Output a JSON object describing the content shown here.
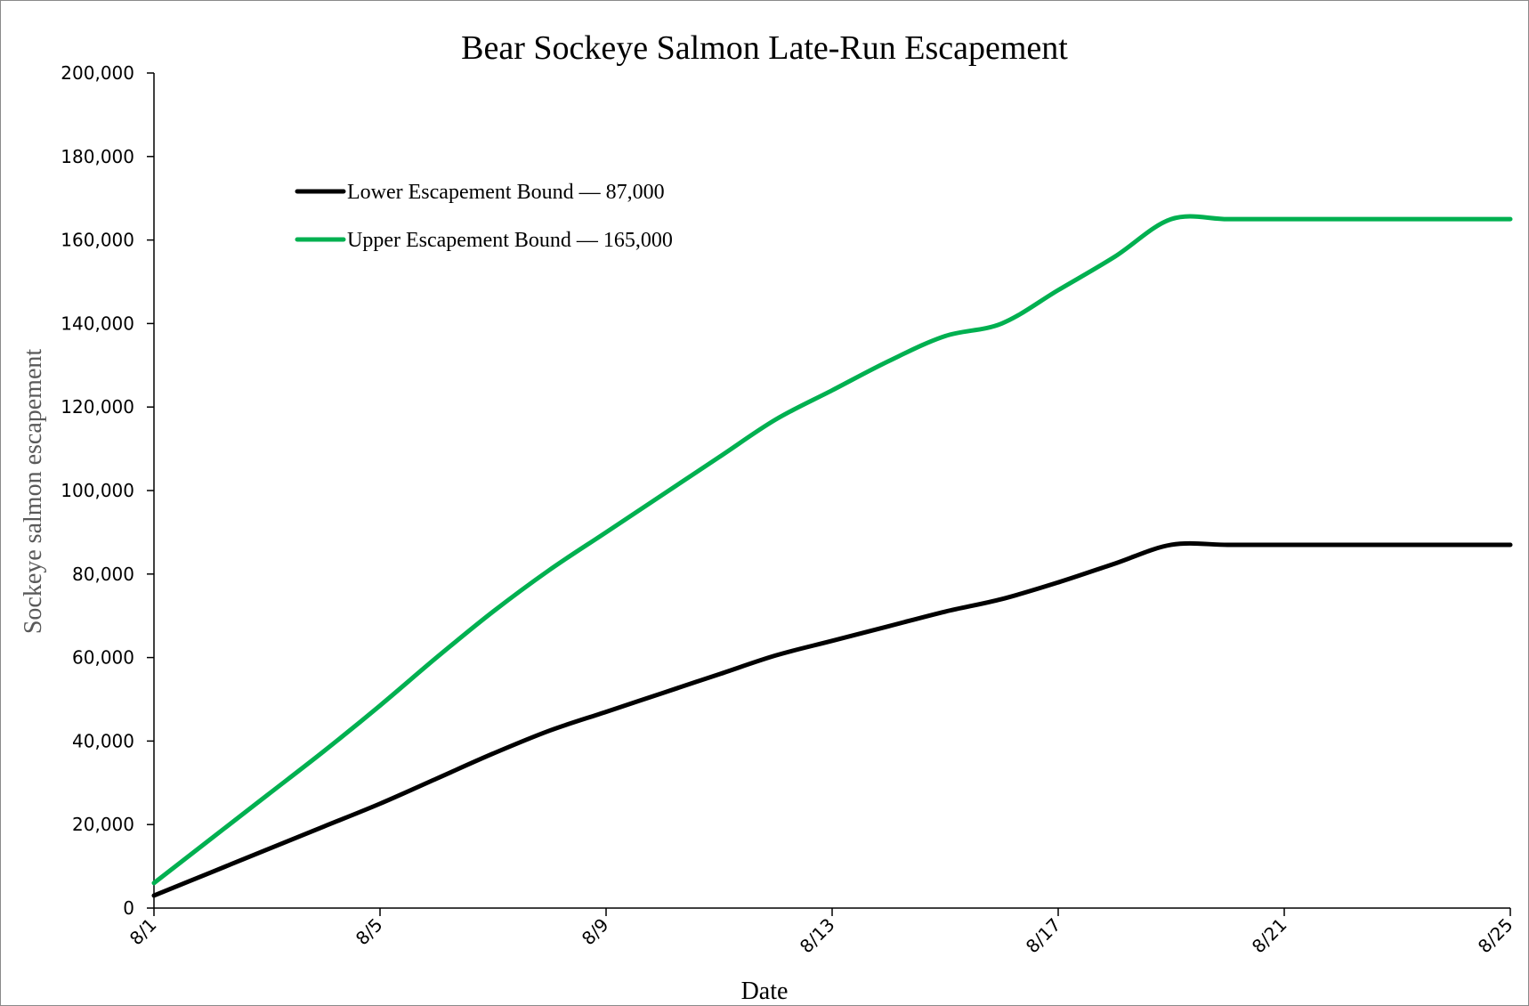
{
  "chart_data": {
    "type": "line",
    "title": "Bear Sockeye Salmon Late-Run Escapement",
    "xlabel": "Date",
    "ylabel": "Sockeye salmon escapement",
    "x": [
      "8/1",
      "8/2",
      "8/3",
      "8/4",
      "8/5",
      "8/6",
      "8/7",
      "8/8",
      "8/9",
      "8/10",
      "8/11",
      "8/12",
      "8/13",
      "8/14",
      "8/15",
      "8/16",
      "8/17",
      "8/18",
      "8/19",
      "8/20",
      "8/21",
      "8/22",
      "8/23",
      "8/24",
      "8/25"
    ],
    "x_tick_labels": [
      "8/1",
      "8/5",
      "8/9",
      "8/13",
      "8/17",
      "8/21",
      "8/25"
    ],
    "y_tick_labels": [
      "0",
      "20,000",
      "40,000",
      "60,000",
      "80,000",
      "100,000",
      "120,000",
      "140,000",
      "160,000",
      "180,000",
      "200,000"
    ],
    "ylim": [
      0,
      200000
    ],
    "grid": false,
    "legend_position": "top-left",
    "series": [
      {
        "name": "Lower Escapement Bound — 87,000",
        "color": "#000000",
        "values": [
          3000,
          8500,
          14000,
          19500,
          25000,
          31000,
          37000,
          42500,
          47000,
          51500,
          56000,
          60500,
          64000,
          67500,
          71000,
          74000,
          78000,
          82500,
          87000,
          87000,
          87000,
          87000,
          87000,
          87000,
          87000
        ]
      },
      {
        "name": "Upper Escapement Bound — 165,000",
        "color": "#00b050",
        "values": [
          6000,
          16500,
          27000,
          37500,
          48500,
          60000,
          71000,
          81000,
          90000,
          99000,
          108000,
          117000,
          124000,
          131000,
          137000,
          140000,
          148000,
          156000,
          165000,
          165000,
          165000,
          165000,
          165000,
          165000,
          165000
        ]
      }
    ]
  }
}
